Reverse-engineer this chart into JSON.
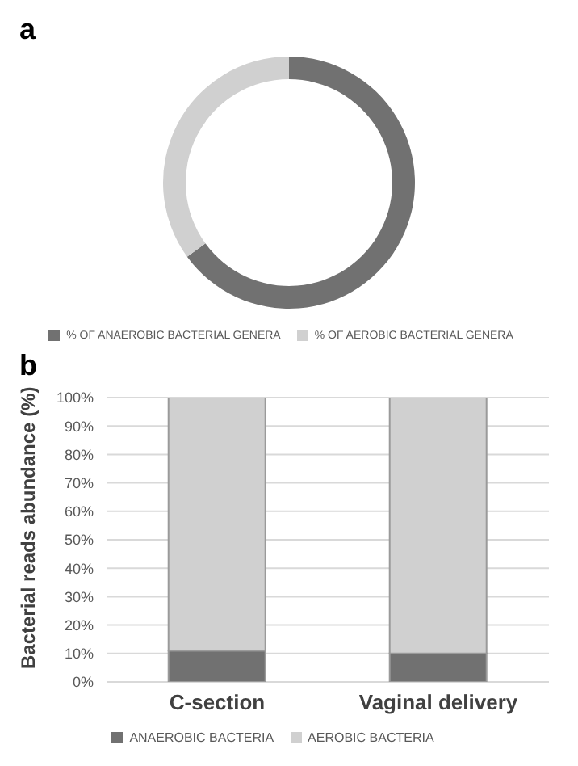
{
  "chart_data": [
    {
      "type": "donut",
      "title": "a",
      "categories": [
        "% OF ANAEROBIC BACTERIAL GENERA",
        "% OF AEROBIC BACTERIAL GENERA"
      ],
      "values": [
        65,
        35
      ],
      "colors": [
        "#717171",
        "#d0d0d0"
      ],
      "legend": "bottom"
    },
    {
      "type": "bar",
      "title": "b",
      "categories": [
        "C-section",
        "Vaginal delivery"
      ],
      "stacked": true,
      "ylabel": "Bacterial reads abundance (%)",
      "ylim": [
        0,
        100
      ],
      "yticks": [
        {
          "value": 0,
          "label": "0%"
        },
        {
          "value": 10,
          "label": "10%"
        },
        {
          "value": 20,
          "label": "20%"
        },
        {
          "value": 30,
          "label": "30%"
        },
        {
          "value": 40,
          "label": "40%"
        },
        {
          "value": 50,
          "label": "50%"
        },
        {
          "value": 60,
          "label": "60%"
        },
        {
          "value": 70,
          "label": "70%"
        },
        {
          "value": 80,
          "label": "80%"
        },
        {
          "value": 90,
          "label": "90%"
        },
        {
          "value": 100,
          "label": "100%"
        }
      ],
      "series": [
        {
          "name": "ANAEROBIC BACTERIA",
          "color": "#717171",
          "values": [
            11,
            10
          ]
        },
        {
          "name": "AEROBIC BACTERIA",
          "color": "#d0d0d0",
          "values": [
            89,
            90
          ]
        }
      ],
      "grid": "y",
      "legend": "bottom"
    }
  ]
}
